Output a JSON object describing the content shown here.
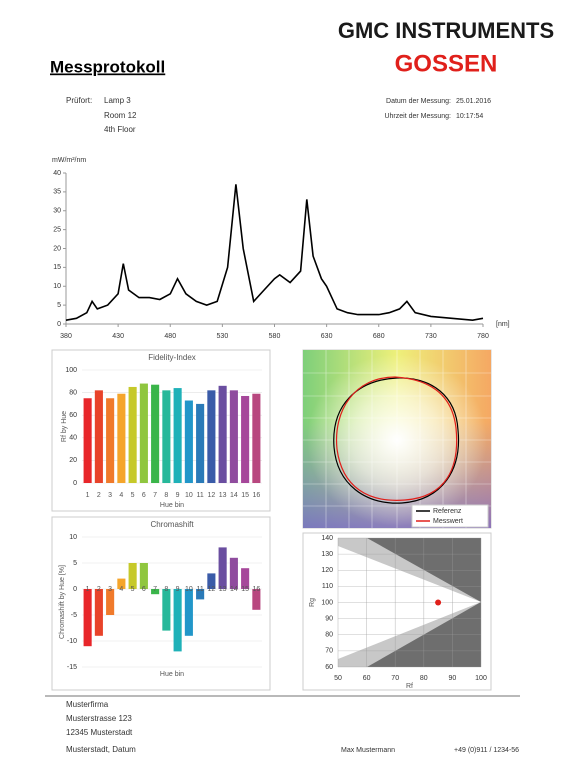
{
  "header": {
    "logo_top": "GMC INSTRUMENTS",
    "logo_bottom": "GOSSEN",
    "title": "Messprotokoll",
    "location_label": "Prüfort:",
    "location_lines": [
      "Lamp 3",
      "Room 12",
      "4th Floor"
    ],
    "date_label": "Datum der Messung:",
    "date": "25.01.2016",
    "time_label": "Uhrzeit der Messung:",
    "time": "10:17:54"
  },
  "color_vector": {
    "legend": [
      {
        "name": "Referenz",
        "color": "#000000"
      },
      {
        "name": "Messwert",
        "color": "#e0201b"
      }
    ]
  },
  "chart_data": [
    {
      "type": "line",
      "y_label": "mW/m²/nm",
      "x_unit": "[nm]",
      "color": "#000000",
      "x": [
        380,
        390,
        400,
        405,
        410,
        420,
        430,
        435,
        440,
        450,
        460,
        470,
        480,
        487,
        495,
        505,
        515,
        525,
        535,
        543,
        550,
        560,
        570,
        580,
        585,
        595,
        605,
        611,
        617,
        625,
        630,
        640,
        650,
        660,
        680,
        690,
        700,
        707,
        715,
        730,
        750,
        770,
        780
      ],
      "values": [
        1,
        1.5,
        3,
        6,
        4,
        5,
        8,
        16,
        9,
        7,
        7,
        6.5,
        8,
        12,
        8,
        6,
        5,
        6,
        15,
        37,
        20,
        6,
        9,
        12,
        13,
        11,
        14,
        33,
        18,
        12,
        10,
        4,
        3,
        2.5,
        2.5,
        3,
        4,
        6,
        3,
        2,
        1.5,
        1,
        1.5
      ],
      "xlim": [
        380,
        780
      ],
      "xticks": [
        380,
        430,
        480,
        530,
        580,
        630,
        680,
        730,
        780
      ],
      "ylim": [
        0,
        40
      ],
      "yticks": [
        0,
        5,
        10,
        15,
        20,
        25,
        30,
        35,
        40
      ]
    },
    {
      "type": "bar",
      "title": "Fidelity-Index",
      "y_label": "Rf by Hue",
      "x_label": "Hue bin",
      "grid": true,
      "categories": [
        "1",
        "2",
        "3",
        "4",
        "5",
        "6",
        "7",
        "8",
        "9",
        "10",
        "11",
        "12",
        "13",
        "14",
        "15",
        "16"
      ],
      "values": [
        75,
        82,
        75,
        79,
        85,
        88,
        87,
        82,
        84,
        73,
        70,
        82,
        86,
        82,
        77,
        79
      ],
      "colors": [
        "#e8262a",
        "#e8432a",
        "#f07a2b",
        "#f5a52b",
        "#c6c92a",
        "#8fc63f",
        "#3ab54a",
        "#27b89a",
        "#1fb1b8",
        "#2196c9",
        "#2a7ab8",
        "#3a5ba8",
        "#6a4ea0",
        "#8f4c9e",
        "#a6479a",
        "#b8477f"
      ],
      "ylim": [
        0,
        100
      ],
      "yticks": [
        0,
        20,
        40,
        60,
        80,
        100
      ]
    },
    {
      "type": "bar",
      "title": "Chromashift",
      "y_label": "Chromashift by Hue [%]",
      "x_label": "Hue bin",
      "grid": true,
      "categories": [
        "1",
        "2",
        "3",
        "4",
        "5",
        "6",
        "7",
        "8",
        "9",
        "10",
        "11",
        "12",
        "13",
        "14",
        "15",
        "16"
      ],
      "values": [
        -11,
        -9,
        -5,
        2,
        5,
        5,
        -1,
        -8,
        -12,
        -9,
        -2,
        3,
        8,
        6,
        4,
        -4
      ],
      "colors": [
        "#e8262a",
        "#e8432a",
        "#f07a2b",
        "#f5a52b",
        "#c6c92a",
        "#8fc63f",
        "#3ab54a",
        "#27b89a",
        "#1fb1b8",
        "#2196c9",
        "#2a7ab8",
        "#3a5ba8",
        "#6a4ea0",
        "#8f4c9e",
        "#a6479a",
        "#b8477f"
      ],
      "ylim": [
        -15,
        10
      ],
      "yticks": [
        -15,
        -10,
        -5,
        0,
        5,
        10
      ]
    },
    {
      "type": "scatter",
      "x_label": "Rf",
      "y_label": "Rg",
      "grid": true,
      "color": "#e0201b",
      "x": [
        85
      ],
      "values": [
        100
      ],
      "xlim": [
        50,
        100
      ],
      "xticks": [
        50,
        60,
        70,
        80,
        90,
        100
      ],
      "ylim": [
        60,
        140
      ],
      "yticks": [
        60,
        70,
        80,
        90,
        100,
        110,
        120,
        130,
        140
      ]
    }
  ],
  "footer": {
    "address": [
      "Musterfirma",
      "Musterstrasse 123",
      "12345 Musterstadt"
    ],
    "place_date": "Musterstadt,  Datum",
    "name": "Max Mustermann",
    "phone": "+49 (0)911 / 1234-56"
  }
}
